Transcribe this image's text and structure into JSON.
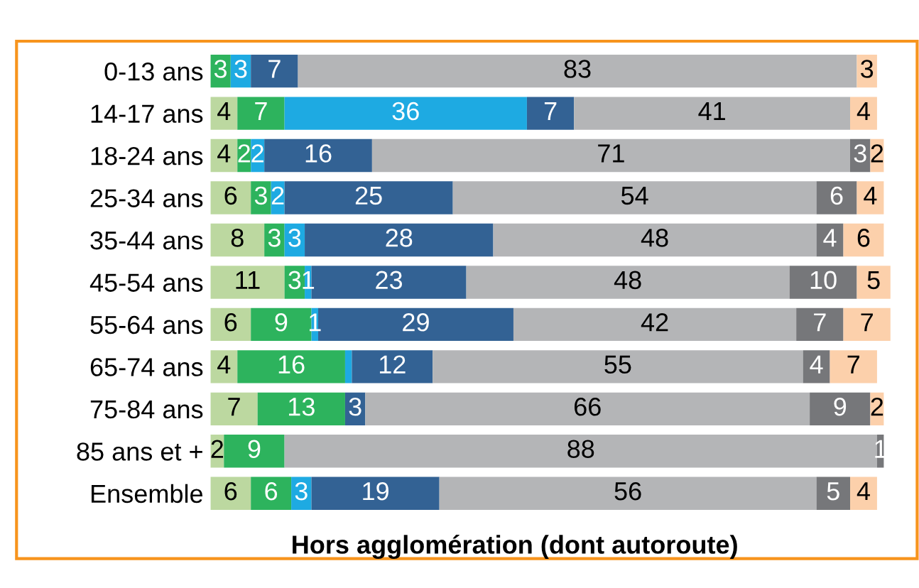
{
  "chart_data": {
    "type": "bar",
    "orientation": "horizontal",
    "stacked": true,
    "title": "Hors agglomération (dont autoroute)",
    "categories": [
      "0-13 ans",
      "14-17 ans",
      "18-24 ans",
      "25-34 ans",
      "35-44 ans",
      "45-54 ans",
      "55-64 ans",
      "65-74 ans",
      "75-84 ans",
      "85 ans et +",
      "Ensemble"
    ],
    "xlim": [
      0,
      101
    ],
    "tick_labels": "y",
    "grid": false,
    "legend": false,
    "series": [
      {
        "color": "#bcd8a0",
        "values": [
          0,
          4,
          4,
          6,
          8,
          11,
          6,
          4,
          7,
          2,
          6
        ],
        "value_labels": [
          null,
          "4",
          "4",
          "6",
          "8",
          "11",
          "6",
          "4",
          "7",
          "2",
          "6"
        ]
      },
      {
        "color": "#2db35d",
        "values": [
          3,
          7,
          2,
          3,
          3,
          3,
          9,
          16,
          13,
          9,
          6
        ],
        "value_labels": [
          "3",
          "7",
          "2",
          "3",
          "3",
          "3",
          "9",
          "16",
          "13",
          "9",
          "6"
        ]
      },
      {
        "color": "#1eaae2",
        "values": [
          3,
          36,
          2,
          2,
          3,
          1,
          1,
          1,
          0,
          0,
          3
        ],
        "value_labels": [
          "3",
          "36",
          "2",
          "2",
          "3",
          "1",
          "1",
          null,
          null,
          null,
          "3"
        ]
      },
      {
        "color": "#336294",
        "values": [
          7,
          7,
          16,
          25,
          28,
          23,
          29,
          12,
          3,
          0,
          19
        ],
        "value_labels": [
          "7",
          "7",
          "16",
          "25",
          "28",
          "23",
          "29",
          "12",
          "3",
          null,
          "19"
        ]
      },
      {
        "color": "#b4b5b7",
        "values": [
          83,
          41,
          71,
          54,
          48,
          48,
          42,
          55,
          66,
          88,
          56
        ],
        "value_labels": [
          "83",
          "41",
          "71",
          "54",
          "48",
          "48",
          "42",
          "55",
          "66",
          "88",
          "56"
        ]
      },
      {
        "color": "#76777a",
        "values": [
          0,
          0,
          3,
          6,
          4,
          10,
          7,
          4,
          9,
          1,
          5
        ],
        "value_labels": [
          null,
          null,
          "3",
          "6",
          "4",
          "10",
          "7",
          "4",
          "9",
          "1",
          "5"
        ]
      },
      {
        "color": "#fcd0ab",
        "values": [
          3,
          4,
          2,
          4,
          6,
          5,
          7,
          7,
          2,
          0,
          4
        ],
        "value_labels": [
          "3",
          "4",
          "2",
          "4",
          "6",
          "5",
          "7",
          "7",
          "2",
          null,
          "4"
        ]
      }
    ]
  }
}
